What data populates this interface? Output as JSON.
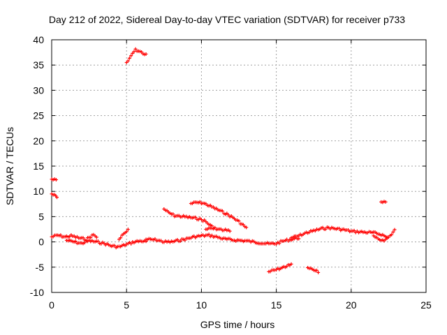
{
  "chart_data": {
    "type": "scatter",
    "title": "Day 212 of 2022, Sidereal Day-to-day VTEC variation (SDTVAR) for receiver p733",
    "xlabel": "GPS time / hours",
    "ylabel": "SDTVAR / TECUs",
    "xlim": [
      0,
      25
    ],
    "ylim": [
      -10,
      40
    ],
    "xticks": [
      0,
      5,
      10,
      15,
      20,
      25
    ],
    "yticks": [
      -10,
      -5,
      0,
      5,
      10,
      15,
      20,
      25,
      30,
      35,
      40
    ],
    "grid": true,
    "legend": "none",
    "series": [
      {
        "name": "SDTVAR",
        "color": "#ff0000",
        "segments": [
          {
            "label": "arc-early-high-a",
            "points": [
              [
                0.0,
                12.4
              ],
              [
                0.3,
                12.2
              ]
            ]
          },
          {
            "label": "arc-early-high-b",
            "points": [
              [
                0.0,
                9.5
              ],
              [
                0.2,
                9.2
              ],
              [
                0.35,
                8.8
              ]
            ]
          },
          {
            "label": "arc-early-low",
            "points": [
              [
                0.0,
                1.0
              ],
              [
                0.4,
                1.3
              ],
              [
                0.9,
                1.0
              ],
              [
                1.3,
                1.2
              ],
              [
                1.8,
                0.8
              ],
              [
                2.3,
                0.5
              ],
              [
                2.8,
                1.4
              ],
              [
                3.0,
                1.0
              ]
            ]
          },
          {
            "label": "arc-early-band",
            "points": [
              [
                1.0,
                0.3
              ],
              [
                1.5,
                0.0
              ],
              [
                2.0,
                -0.3
              ],
              [
                2.5,
                0.2
              ],
              [
                3.0,
                0.0
              ],
              [
                3.5,
                -0.3
              ],
              [
                4.0,
                -0.8
              ],
              [
                4.5,
                -1.0
              ],
              [
                5.0,
                -0.5
              ],
              [
                5.5,
                0.0
              ],
              [
                6.0,
                0.2
              ],
              [
                6.3,
                0.0
              ]
            ]
          },
          {
            "label": "arc-rise-5h",
            "points": [
              [
                4.5,
                0.5
              ],
              [
                4.8,
                1.5
              ],
              [
                5.1,
                2.3
              ]
            ]
          },
          {
            "label": "arc-top-peak",
            "points": [
              [
                5.0,
                35.5
              ],
              [
                5.2,
                36.2
              ],
              [
                5.4,
                37.3
              ],
              [
                5.6,
                38.0
              ],
              [
                5.8,
                37.8
              ],
              [
                6.0,
                37.5
              ],
              [
                6.3,
                37.0
              ]
            ]
          },
          {
            "label": "arc-mid-band",
            "points": [
              [
                6.3,
                0.5
              ],
              [
                7.0,
                0.4
              ],
              [
                7.5,
                0.0
              ],
              [
                8.0,
                0.0
              ],
              [
                8.5,
                0.3
              ],
              [
                9.0,
                0.6
              ],
              [
                9.5,
                1.0
              ],
              [
                10.0,
                1.2
              ],
              [
                10.5,
                1.3
              ],
              [
                11.0,
                1.0
              ],
              [
                11.5,
                0.6
              ],
              [
                12.0,
                0.4
              ],
              [
                12.5,
                0.3
              ],
              [
                13.0,
                0.2
              ],
              [
                13.5,
                0.0
              ],
              [
                14.0,
                -0.2
              ],
              [
                14.5,
                -0.4
              ],
              [
                15.0,
                -0.3
              ],
              [
                15.5,
                0.2
              ],
              [
                16.0,
                0.5
              ],
              [
                16.5,
                0.8
              ]
            ]
          },
          {
            "label": "arc-7h-descend",
            "points": [
              [
                7.5,
                6.5
              ],
              [
                7.8,
                5.8
              ],
              [
                8.2,
                5.2
              ],
              [
                8.8,
                5.0
              ],
              [
                9.3,
                4.8
              ],
              [
                9.8,
                4.6
              ],
              [
                10.2,
                4.2
              ],
              [
                10.5,
                3.5
              ],
              [
                10.8,
                2.8
              ]
            ]
          },
          {
            "label": "arc-10h-ridge",
            "points": [
              [
                9.3,
                7.6
              ],
              [
                9.7,
                7.8
              ],
              [
                10.1,
                7.7
              ],
              [
                10.5,
                7.2
              ],
              [
                11.0,
                6.5
              ],
              [
                11.5,
                5.8
              ],
              [
                12.0,
                5.0
              ],
              [
                12.5,
                4.0
              ],
              [
                13.0,
                2.8
              ]
            ]
          },
          {
            "label": "arc-10h-bump",
            "points": [
              [
                10.3,
                2.5
              ],
              [
                10.8,
                2.7
              ],
              [
                11.2,
                2.5
              ],
              [
                11.6,
                2.3
              ],
              [
                11.9,
                2.2
              ]
            ]
          },
          {
            "label": "arc-neg-15h",
            "points": [
              [
                14.5,
                -5.9
              ],
              [
                14.9,
                -5.6
              ],
              [
                15.3,
                -5.2
              ],
              [
                15.7,
                -4.8
              ],
              [
                16.0,
                -4.5
              ]
            ]
          },
          {
            "label": "arc-neg-17h",
            "points": [
              [
                17.1,
                -5.1
              ],
              [
                17.4,
                -5.5
              ],
              [
                17.8,
                -5.9
              ]
            ]
          },
          {
            "label": "arc-late-band",
            "points": [
              [
                16.0,
                0.8
              ],
              [
                16.5,
                1.2
              ],
              [
                17.0,
                1.8
              ],
              [
                17.5,
                2.2
              ],
              [
                18.0,
                2.6
              ],
              [
                18.5,
                2.8
              ],
              [
                19.0,
                2.6
              ],
              [
                19.5,
                2.4
              ],
              [
                20.0,
                2.1
              ],
              [
                20.5,
                2.0
              ],
              [
                21.0,
                1.9
              ],
              [
                21.5,
                1.8
              ],
              [
                22.0,
                1.5
              ],
              [
                22.4,
                0.9
              ],
              [
                22.7,
                1.4
              ],
              [
                22.9,
                2.3
              ]
            ]
          },
          {
            "label": "arc-late-dip",
            "points": [
              [
                21.5,
                1.2
              ],
              [
                21.8,
                0.5
              ],
              [
                22.1,
                0.2
              ],
              [
                22.4,
                0.7
              ]
            ]
          },
          {
            "label": "arc-late-point",
            "points": [
              [
                22.0,
                7.9
              ],
              [
                22.3,
                7.8
              ]
            ]
          }
        ]
      }
    ]
  }
}
